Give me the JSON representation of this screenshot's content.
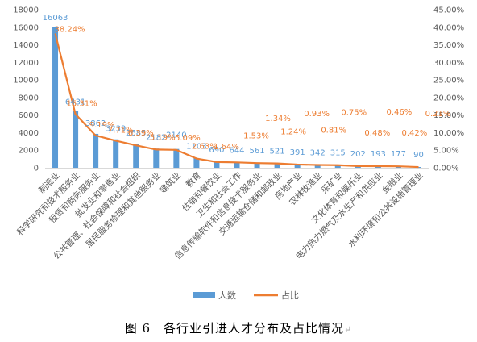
{
  "chart_data": {
    "type": "bar",
    "categories": [
      "制造业",
      "科学研究和技术服务业",
      "租赁和商务服务业",
      "批发业和零售业",
      "公共管理、社会保障和社会组织",
      "居民服务修理和其他服务业",
      "建筑业",
      "教育",
      "住宿和餐饮业",
      "卫生和社会工作",
      "信息传输软件和信息技术服务业",
      "交通运输仓储和邮政业",
      "房地产业",
      "农林牧渔业",
      "采矿业",
      "文化体育和娱乐业",
      "电力热力燃气及水生产和供应业",
      "金融业",
      "水利环境和公共设施管理业"
    ],
    "series": [
      {
        "name": "人数",
        "type": "bar",
        "axis": "left",
        "color": "#5b9bd5",
        "values": [
          16063,
          6431,
          3862,
          3239,
          2685,
          2182,
          2140,
          1103,
          690,
          644,
          561,
          521,
          391,
          342,
          315,
          202,
          193,
          177,
          90
        ]
      },
      {
        "name": "占比",
        "type": "line",
        "axis": "right",
        "color": "#ed7d31",
        "values": [
          38.24,
          15.31,
          9.19,
          7.71,
          6.39,
          5.19,
          5.09,
          2.63,
          1.64,
          1.53,
          1.34,
          1.24,
          0.93,
          0.81,
          0.75,
          0.48,
          0.46,
          0.42,
          0.21
        ],
        "labels": [
          "38.24%",
          "15.31%",
          "9.19%",
          "7.71%",
          "6.39%",
          "5.19%",
          "5.09%",
          "2.63%",
          "1.64%",
          "1.53%",
          "1.34%",
          "1.24%",
          "0.93%",
          "0.81%",
          "0.75%",
          "0.48%",
          "0.46%",
          "0.42%",
          "0.21%"
        ]
      }
    ],
    "bar_labels": [
      "16063",
      "6431",
      "3862",
      "3239",
      "2685",
      "2182",
      "2140",
      "1103",
      "690",
      "644",
      "561",
      "521",
      "391",
      "342",
      "315",
      "202",
      "193",
      "177",
      "90"
    ],
    "ylim_left": [
      0,
      18000
    ],
    "yticks_left": [
      "0",
      "2000",
      "4000",
      "6000",
      "8000",
      "10000",
      "12000",
      "14000",
      "16000",
      "18000"
    ],
    "ylim_right": [
      0,
      45
    ],
    "yticks_right": [
      "0.00%",
      "5.00%",
      "10.00%",
      "15.00%",
      "20.00%",
      "25.00%",
      "30.00%",
      "35.00%",
      "40.00%",
      "45.00%"
    ],
    "grid": false,
    "legend_position": "bottom",
    "legend": [
      "人数",
      "占比"
    ]
  },
  "caption": {
    "text": "图 6　各行业引进人才分布及占比情况",
    "mark": "↵"
  }
}
